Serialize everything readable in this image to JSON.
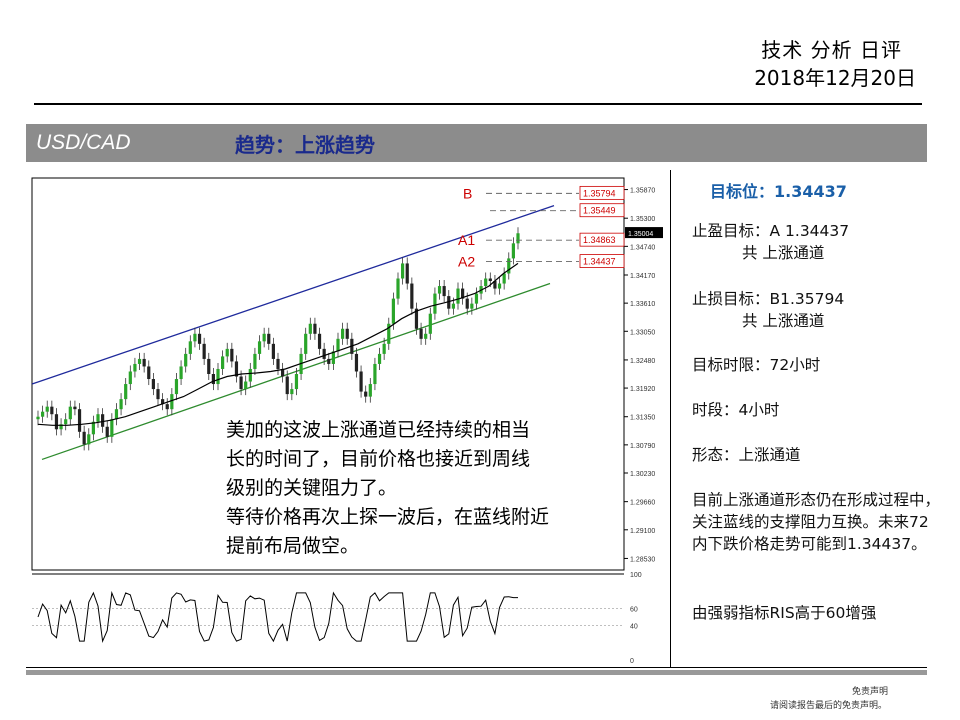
{
  "header": {
    "title": "技术 分析 日评",
    "date": "2018年12月20日"
  },
  "bar": {
    "symbol": "USD/CAD",
    "trend": "趋势：上涨趋势"
  },
  "sidebar": {
    "target": "目标位：1.34437",
    "tp_line1": "止盈目标：A 1.34437",
    "tp_line2": "共 上涨通道",
    "sl_line1": "止损目标：B1.35794",
    "sl_line2": "共 上涨通道",
    "timeframe_limit": "目标时限：72小时",
    "period": "时段：4小时",
    "pattern": "形态：上涨通道",
    "analysis": "目前上涨通道形态仍在形成过程中，关注蓝线的支撑阻力互换。未来72内下跌价格走势可能到1.34437。",
    "rsi_note": "由强弱指标RIS高于60增强"
  },
  "overlay": [
    "美加的这波上涨通道已经持续的相当",
    "长的时间了，目前价格也接近到周线",
    "级别的关键阻力了。",
    "等待价格再次上探一波后，在蓝线附近",
    "提前布局做空。"
  ],
  "footer": {
    "line1": "免责声明",
    "line2": "请阅读报告最后的免责声明。"
  },
  "chart_data": {
    "type": "candlestick",
    "y_ticks": [
      "1.35870",
      "1.35300",
      "1.34740",
      "1.34170",
      "1.33610",
      "1.33050",
      "1.32480",
      "1.31920",
      "1.31350",
      "1.30790",
      "1.30230",
      "1.29660",
      "1.29100",
      "1.28530"
    ],
    "ylim": [
      1.283,
      1.361
    ],
    "current_price": "1.35004",
    "levels": [
      {
        "label": "B",
        "value": 1.35794,
        "text": "1.35794",
        "color": "#cc0000"
      },
      {
        "label": "",
        "value": 1.35449,
        "text": "1.35449",
        "color": "#cc0000"
      },
      {
        "label": "A1",
        "value": 1.34863,
        "text": "1.34863",
        "color": "#cc0000"
      },
      {
        "label": "A2",
        "value": 1.34437,
        "text": "1.34437",
        "color": "#cc0000"
      }
    ],
    "close": [
      1.3135,
      1.3145,
      1.3155,
      1.314,
      1.311,
      1.312,
      1.313,
      1.3155,
      1.315,
      1.3105,
      1.308,
      1.31,
      1.3125,
      1.314,
      1.3115,
      1.3095,
      1.313,
      1.315,
      1.317,
      1.32,
      1.3225,
      1.324,
      1.325,
      1.3235,
      1.321,
      1.319,
      1.317,
      1.316,
      1.315,
      1.318,
      1.321,
      1.3235,
      1.326,
      1.3285,
      1.33,
      1.328,
      1.325,
      1.322,
      1.32,
      1.323,
      1.3255,
      1.327,
      1.3245,
      1.3215,
      1.319,
      1.3205,
      1.323,
      1.326,
      1.3285,
      1.33,
      1.328,
      1.325,
      1.323,
      1.3215,
      1.318,
      1.319,
      1.322,
      1.326,
      1.33,
      1.332,
      1.33,
      1.327,
      1.325,
      1.324,
      1.3265,
      1.329,
      1.331,
      1.329,
      1.326,
      1.3225,
      1.3185,
      1.3175,
      1.32,
      1.324,
      1.326,
      1.328,
      1.332,
      1.337,
      1.341,
      1.344,
      1.34,
      1.335,
      1.331,
      1.329,
      1.33,
      1.334,
      1.338,
      1.3395,
      1.3375,
      1.335,
      1.336,
      1.339,
      1.337,
      1.335,
      1.336,
      1.338,
      1.3395,
      1.341,
      1.3405,
      1.339,
      1.34,
      1.342,
      1.345,
      1.348,
      1.35
    ],
    "ma": [
      1.312,
      1.3118,
      1.3118,
      1.312,
      1.3123,
      1.3128,
      1.3135,
      1.3145,
      1.3155,
      1.3165,
      1.3175,
      1.319,
      1.3205,
      1.3215,
      1.322,
      1.3222,
      1.3225,
      1.323,
      1.324,
      1.325,
      1.326,
      1.327,
      1.328,
      1.3295,
      1.331,
      1.333,
      1.3345,
      1.3355,
      1.3362,
      1.337,
      1.338,
      1.3395,
      1.342,
      1.344
    ],
    "channel": {
      "upper": {
        "from": 1.32,
        "to": 1.3555,
        "color": "#1f2a9c"
      },
      "lower": {
        "from": 1.305,
        "to": 1.34,
        "color": "#2e8b2e"
      }
    },
    "indicator": {
      "ticks": [
        "100",
        "60",
        "40",
        "0"
      ],
      "levels": [
        100,
        60,
        40,
        0
      ]
    }
  }
}
